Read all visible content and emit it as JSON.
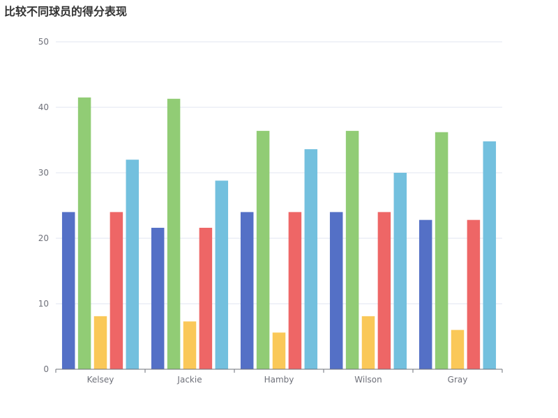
{
  "chart_data": {
    "type": "bar",
    "title": "比较不同球员的得分表现",
    "categories": [
      "Kelsey",
      "Jackie",
      "Hamby",
      "Wilson",
      "Gray"
    ],
    "series": [
      {
        "color": "#5470c6",
        "values": [
          24,
          21.6,
          24,
          24,
          22.8
        ]
      },
      {
        "color": "#91cc75",
        "values": [
          41.5,
          41.3,
          36.4,
          36.4,
          36.2
        ]
      },
      {
        "color": "#fac858",
        "values": [
          8.1,
          7.3,
          5.6,
          8.1,
          6.0
        ]
      },
      {
        "color": "#ee6666",
        "values": [
          24,
          21.6,
          24,
          24,
          22.8
        ]
      },
      {
        "color": "#73c0de",
        "values": [
          32,
          28.8,
          33.6,
          30,
          34.8
        ]
      }
    ],
    "ylim": [
      0,
      50
    ],
    "yticks": [
      0,
      10,
      20,
      30,
      40,
      50
    ],
    "grid": true,
    "legend": "none"
  }
}
